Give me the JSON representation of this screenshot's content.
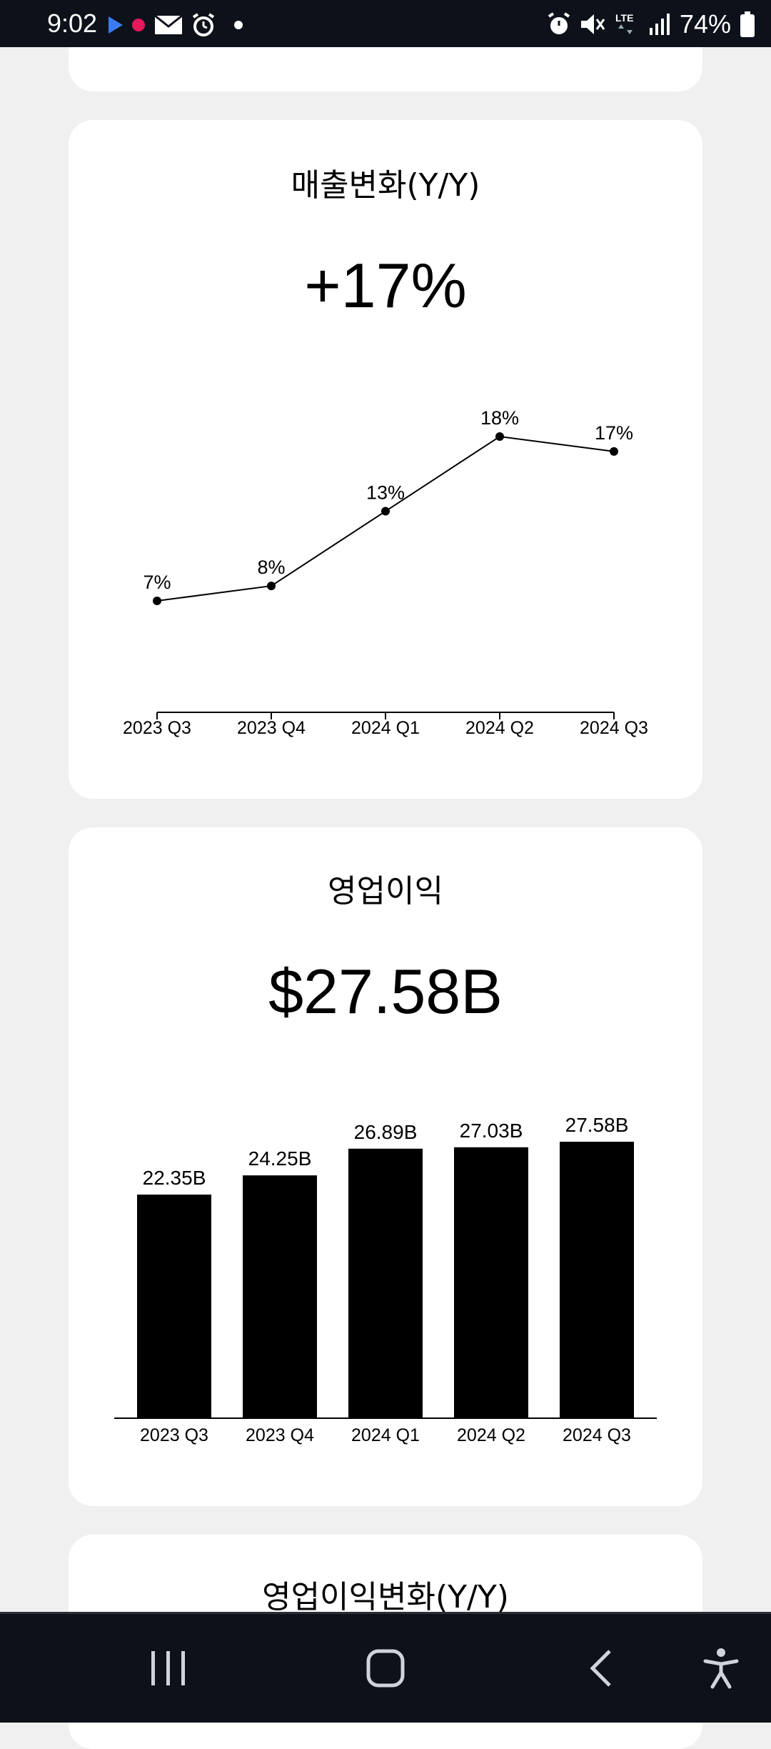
{
  "status_bar": {
    "time": "9:02",
    "battery": "74%",
    "left_icons": [
      "media-play-icon",
      "notification-dot-icon",
      "mail-icon",
      "alarm-icon",
      "more-dot-icon"
    ],
    "right_icons": [
      "alarm-icon",
      "mute-icon",
      "lte-icon",
      "signal-icon",
      "battery-icon"
    ]
  },
  "cards": {
    "revenue_change": {
      "title": "매출변화(Y/Y)",
      "value": "+17%",
      "chart_data": {
        "type": "line",
        "categories": [
          "2023 Q3",
          "2023 Q4",
          "2024 Q1",
          "2024 Q2",
          "2024 Q3"
        ],
        "values": [
          7,
          8,
          13,
          18,
          17
        ],
        "labels": [
          "7%",
          "8%",
          "13%",
          "18%",
          "17%"
        ],
        "grid": false
      }
    },
    "operating_income": {
      "title": "영업이익",
      "value": "$27.58B",
      "chart_data": {
        "type": "bar",
        "categories": [
          "2023 Q3",
          "2023 Q4",
          "2024 Q1",
          "2024 Q2",
          "2024 Q3"
        ],
        "values": [
          22.35,
          24.25,
          26.89,
          27.03,
          27.58
        ],
        "labels": [
          "22.35B",
          "24.25B",
          "26.89B",
          "27.03B",
          "27.58B"
        ],
        "grid": false
      }
    },
    "operating_income_change": {
      "title": "영업이익변화(Y/Y)"
    }
  },
  "nav_bar": {
    "buttons": [
      "recent-apps",
      "home",
      "back",
      "accessibility"
    ]
  },
  "colors": {
    "status_bar_bg": "#0c111a",
    "page_bg": "#f0f0f0",
    "card_bg": "#ffffff",
    "chart_ink": "#000000"
  }
}
